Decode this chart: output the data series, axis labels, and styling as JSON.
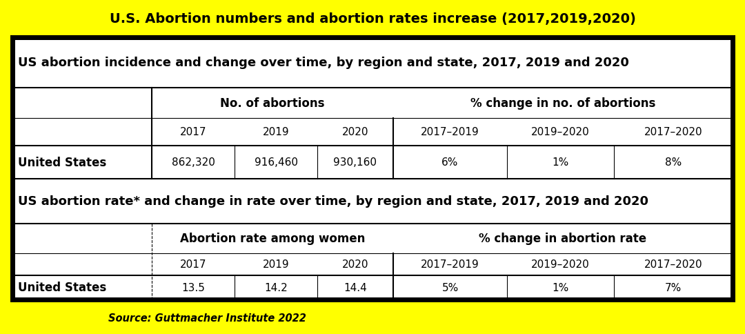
{
  "background_color": "#FFFF00",
  "title": "U.S. Abortion numbers and abortion rates increase (2017,2019,2020)",
  "title_fontsize": 14,
  "title_color": "#000000",
  "source_text": "Source: Guttmacher Institute 2022",
  "table1_header": "US abortion incidence and change over time, by region and state, 2017, 2019 and 2020",
  "table2_header": "US abortion rate* and change in rate over time, by region and state, 2017, 2019 and 2020",
  "table1_col_header1": "No. of abortions",
  "table1_col_header2": "% change in no. of abortions",
  "table2_col_header1": "Abortion rate among women",
  "table2_col_header2": "% change in abortion rate",
  "years": [
    "2017",
    "2019",
    "2020"
  ],
  "pct_years": [
    "2017–2019",
    "2019–2020",
    "2017–2020"
  ],
  "row_label": "United States",
  "table1_values": [
    "862,320",
    "916,460",
    "930,160"
  ],
  "table1_pct": [
    "6%",
    "1%",
    "8%"
  ],
  "table2_values": [
    "13.5",
    "14.2",
    "14.4"
  ],
  "table2_pct": [
    "5%",
    "1%",
    "7%"
  ],
  "text_color": "#000000",
  "white": "#ffffff",
  "black": "#000000",
  "outer_lw": 5,
  "thick_lw": 1.5,
  "thin_lw": 0.8
}
